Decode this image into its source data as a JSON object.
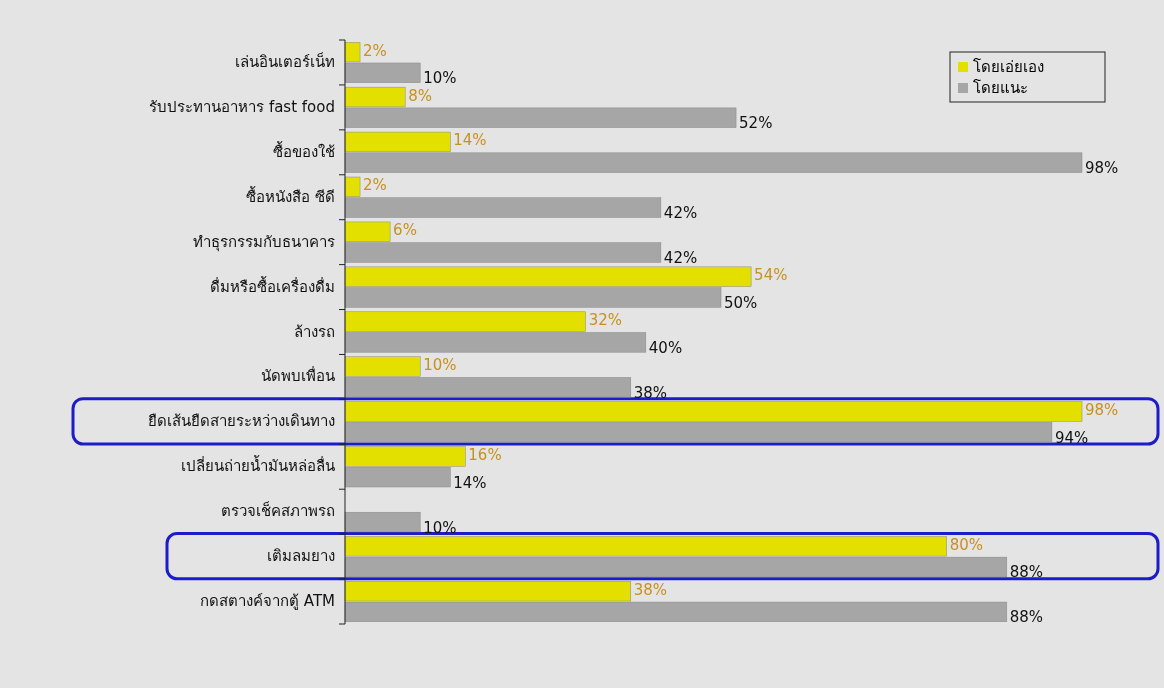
{
  "chart_data": {
    "type": "bar",
    "orientation": "horizontal",
    "categories": [
      "เล่นอินเตอร์เน็ท",
      "รับประทานอาหาร fast food",
      "ซื้อของใช้",
      "ซื้อหนังสือ ซีดี",
      "ทำธุรกรรมกับธนาคาร",
      "ดื่มหรือซื้อเครื่องดื่ม",
      "ล้างรถ",
      "นัดพบเพื่อน",
      "ยืดเส้นยืดสายระหว่างเดินทาง",
      "เปลี่ยนถ่ายน้ำมันหล่อลื่น",
      "ตรวจเช็คสภาพรถ",
      "เติมลมยาง",
      "กดสตางค์จากตู้ ATM"
    ],
    "series": [
      {
        "name": "โดยเอ่ยเอง",
        "color": "#e3e000",
        "values": [
          2,
          8,
          14,
          2,
          6,
          54,
          32,
          10,
          98,
          16,
          null,
          80,
          38
        ],
        "value_labels": [
          "2%",
          "8%",
          "14%",
          "2%",
          "6%",
          "54%",
          "32%",
          "10%",
          "98%",
          "16%",
          null,
          "80%",
          "38%"
        ]
      },
      {
        "name": "โดยแนะ",
        "color": "#a6a6a6",
        "values": [
          10,
          52,
          98,
          42,
          42,
          50,
          40,
          38,
          94,
          14,
          10,
          88,
          88
        ],
        "value_labels": [
          "10%",
          "52%",
          "98%",
          "42%",
          "42%",
          "50%",
          "40%",
          "38%",
          "94%",
          "14%",
          "10%",
          "88%",
          "88%"
        ]
      }
    ],
    "tick_labels": "y",
    "legend": "top right"
  }
}
